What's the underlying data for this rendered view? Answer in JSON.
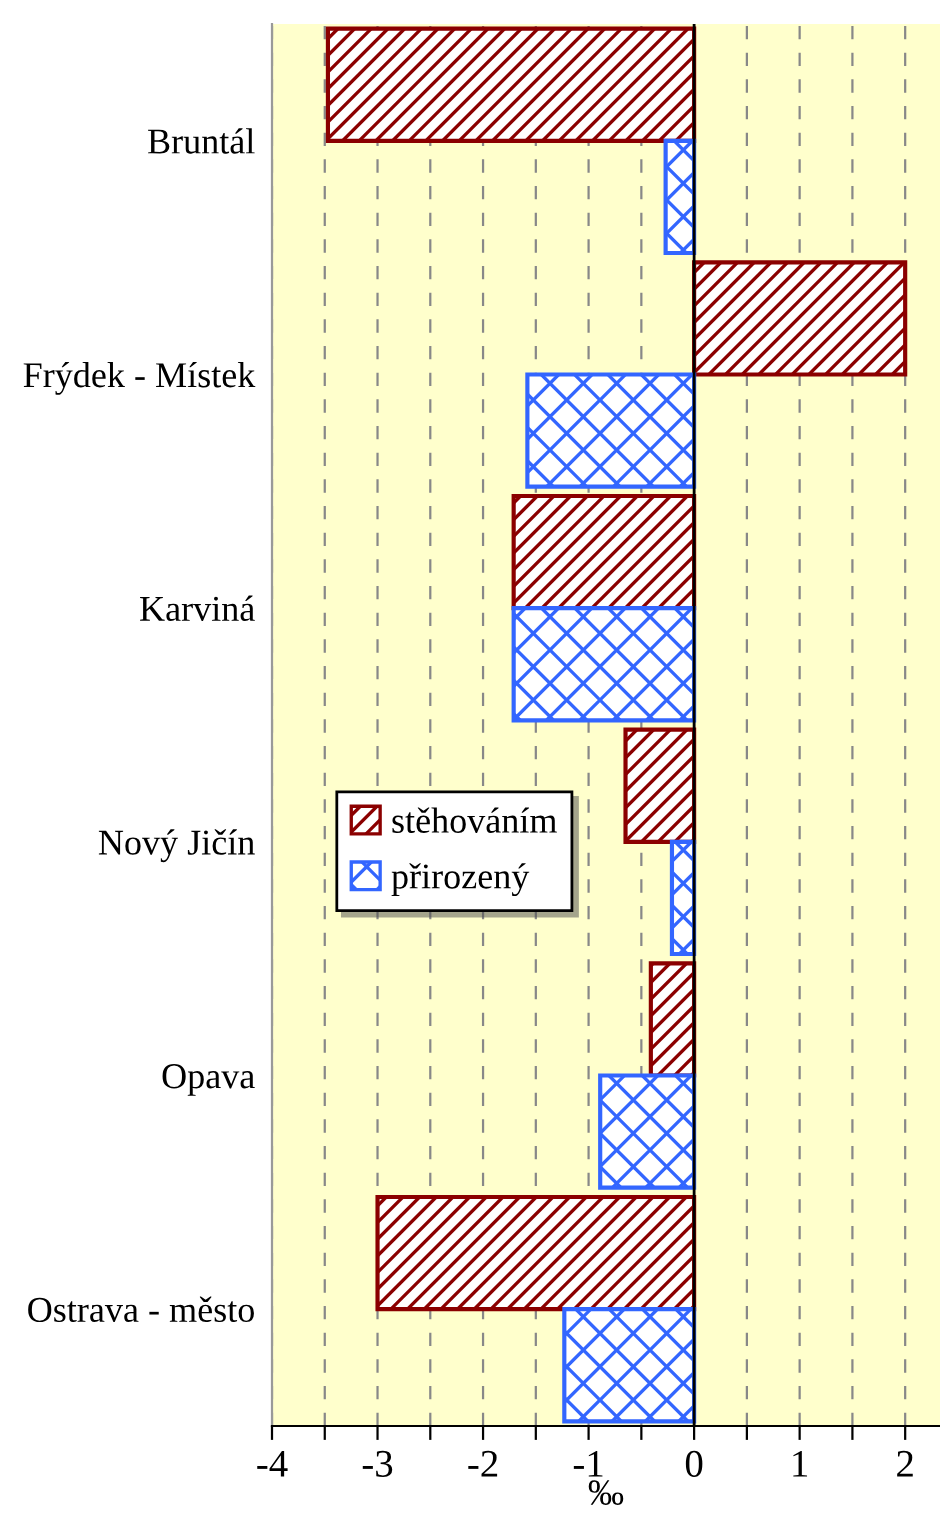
{
  "chart_data": {
    "type": "bar",
    "orientation": "horizontal",
    "xlabel": "‰",
    "categories": [
      "Bruntál",
      "Frýdek - Místek",
      "Karviná",
      "Nový Jičín",
      "Opava",
      "Ostrava - město"
    ],
    "series": [
      {
        "name": "stěhováním",
        "color": "#8b0000",
        "values": [
          -3.47,
          2.0,
          -1.71,
          -0.65,
          -0.41,
          -3.0
        ]
      },
      {
        "name": "přirozený",
        "color": "#3366ff",
        "values": [
          -0.27,
          -1.58,
          -1.71,
          -0.21,
          -0.89,
          -1.23
        ]
      }
    ],
    "xlim": [
      -4,
      2.33
    ],
    "xticks": [
      -4,
      {
        "value": -3.5,
        "label": null
      },
      -3,
      {
        "value": -2.5,
        "label": null
      },
      -2,
      {
        "value": -1.5,
        "label": null
      },
      -1,
      {
        "value": -0.5,
        "label": null
      },
      0,
      {
        "value": 0.5,
        "label": null
      },
      1,
      {
        "value": 1.5,
        "label": null
      },
      2
    ],
    "grid": "x",
    "legend": "left"
  }
}
